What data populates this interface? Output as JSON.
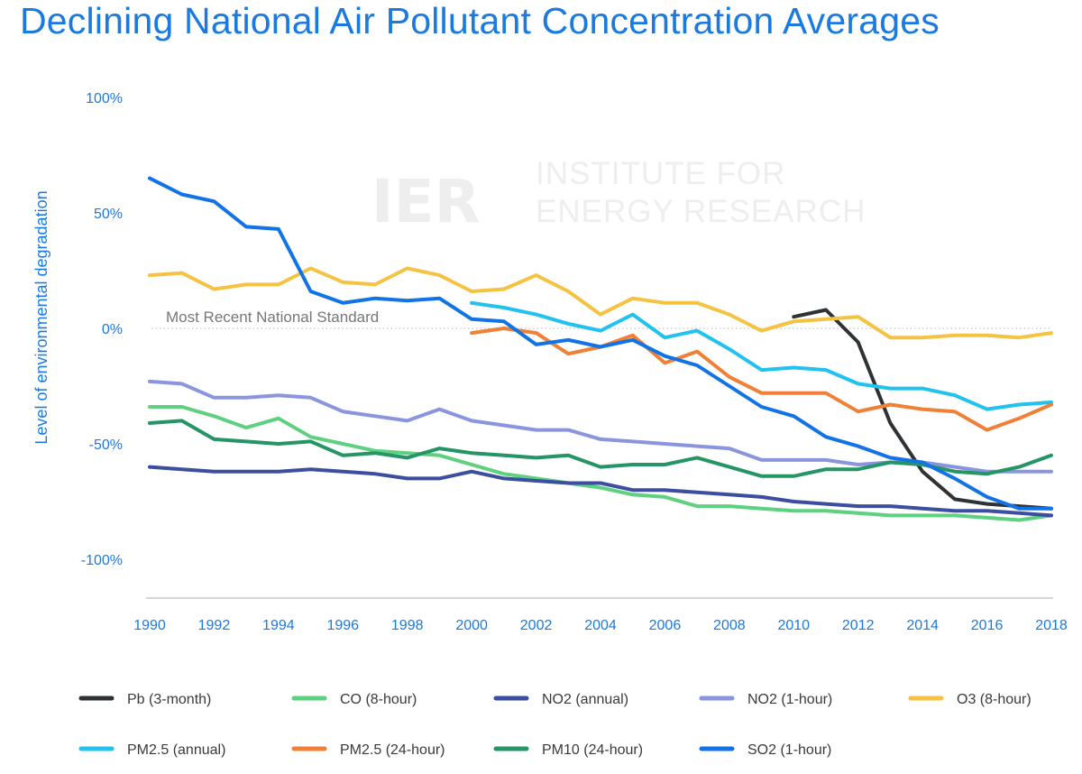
{
  "title": "Declining National Air Pollutant Concentration Averages",
  "watermark": {
    "mark": "IER",
    "line1": "INSTITUTE FOR",
    "line2": "ENERGY RESEARCH"
  },
  "chart_data": {
    "type": "line",
    "title": "Declining National Air Pollutant Concentration Averages",
    "xlabel": "",
    "ylabel": "Level of environmental degradation",
    "xlim": [
      1990,
      2018
    ],
    "ylim": [
      -115,
      100
    ],
    "x_ticks": [
      "1990",
      "1992",
      "1994",
      "1996",
      "1998",
      "2000",
      "2002",
      "2004",
      "2006",
      "2008",
      "2010",
      "2012",
      "2014",
      "2016",
      "2018"
    ],
    "y_ticks": [
      {
        "value": 100,
        "label": "100%"
      },
      {
        "value": 50,
        "label": "50%"
      },
      {
        "value": 0,
        "label": "0%"
      },
      {
        "value": -50,
        "label": "-50%"
      },
      {
        "value": -100,
        "label": "-100%"
      }
    ],
    "reference_line": {
      "value": 0,
      "label": "Most Recent National Standard"
    },
    "legend_position": "bottom",
    "series": [
      {
        "name": "Pb (3-month)",
        "color": "#2f3234",
        "start": 2010,
        "values": [
          5,
          8,
          -6,
          -41,
          -62,
          -74,
          -76,
          -77,
          -78
        ]
      },
      {
        "name": "CO (8-hour)",
        "color": "#5dd17f",
        "start": 1990,
        "values": [
          -34,
          -34,
          -38,
          -43,
          -39,
          -47,
          -50,
          -53,
          -54,
          -55,
          -59,
          -63,
          -65,
          -67,
          -69,
          -72,
          -73,
          -77,
          -77,
          -78,
          -79,
          -79,
          -80,
          -81,
          -81,
          -81,
          -82,
          -83,
          -81
        ]
      },
      {
        "name": "NO2 (annual)",
        "color": "#3b4ea0",
        "start": 1990,
        "values": [
          -60,
          -61,
          -62,
          -62,
          -62,
          -61,
          -62,
          -63,
          -65,
          -65,
          -62,
          -65,
          -66,
          -67,
          -67,
          -70,
          -70,
          -71,
          -72,
          -73,
          -75,
          -76,
          -77,
          -77,
          -78,
          -79,
          -79,
          -80,
          -81
        ]
      },
      {
        "name": "NO2 (1-hour)",
        "color": "#8a95de",
        "start": 1990,
        "values": [
          -23,
          -24,
          -30,
          -30,
          -29,
          -30,
          -36,
          -38,
          -40,
          -35,
          -40,
          -42,
          -44,
          -44,
          -48,
          -49,
          -50,
          -51,
          -52,
          -57,
          -57,
          -57,
          -59,
          -58,
          -58,
          -60,
          -62,
          -62,
          -62
        ]
      },
      {
        "name": "O3 (8-hour)",
        "color": "#f5c342",
        "start": 1990,
        "values": [
          23,
          24,
          17,
          19,
          19,
          26,
          20,
          19,
          26,
          23,
          16,
          17,
          23,
          16,
          6,
          13,
          11,
          11,
          6,
          -1,
          3,
          4,
          5,
          -4,
          -4,
          -3,
          -3,
          -4,
          -2
        ]
      },
      {
        "name": "PM2.5 (annual)",
        "color": "#22c2ee",
        "start": 2000,
        "values": [
          11,
          9,
          6,
          2,
          -1,
          6,
          -4,
          -1,
          -9,
          -18,
          -17,
          -18,
          -24,
          -26,
          -26,
          -29,
          -35,
          -33,
          -32
        ]
      },
      {
        "name": "PM2.5 (24-hour)",
        "color": "#f08036",
        "start": 2000,
        "values": [
          -2,
          0,
          -2,
          -11,
          -8,
          -3,
          -15,
          -10,
          -21,
          -28,
          -28,
          -28,
          -36,
          -33,
          -35,
          -36,
          -44,
          -39,
          -33
        ]
      },
      {
        "name": "PM10 (24-hour)",
        "color": "#259566",
        "start": 1990,
        "values": [
          -41,
          -40,
          -48,
          -49,
          -50,
          -49,
          -55,
          -54,
          -56,
          -52,
          -54,
          -55,
          -56,
          -55,
          -60,
          -59,
          -59,
          -56,
          -60,
          -64,
          -64,
          -61,
          -61,
          -58,
          -59,
          -62,
          -63,
          -60,
          -55
        ]
      },
      {
        "name": "SO2 (1-hour)",
        "color": "#1273e6",
        "start": 1990,
        "values": [
          65,
          58,
          55,
          44,
          43,
          16,
          11,
          13,
          12,
          13,
          4,
          3,
          -7,
          -5,
          -8,
          -5,
          -12,
          -16,
          -25,
          -34,
          -38,
          -47,
          -51,
          -56,
          -58,
          -65,
          -73,
          -78,
          -78
        ]
      }
    ]
  }
}
